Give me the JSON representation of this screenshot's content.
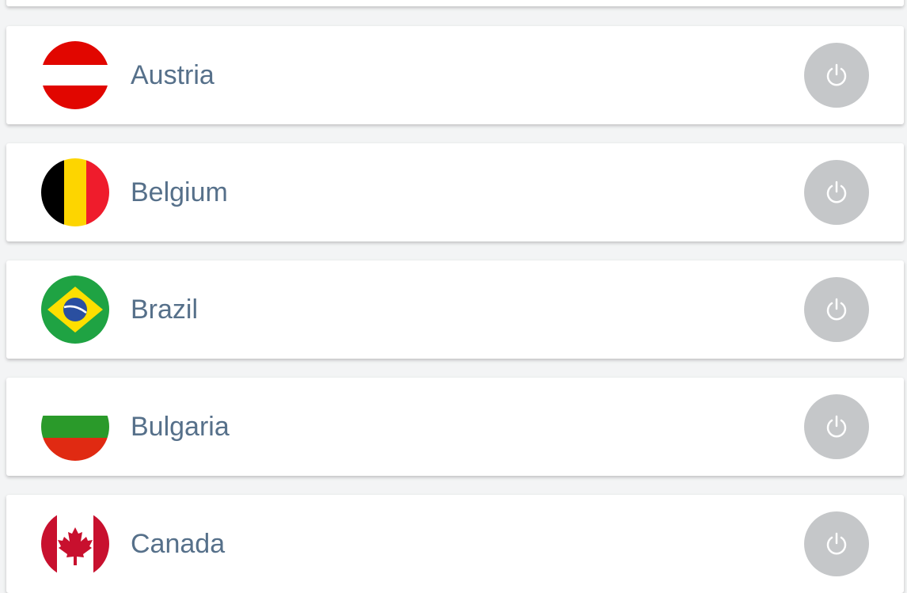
{
  "countries": [
    {
      "name": "Austria",
      "flag": "austria-flag"
    },
    {
      "name": "Belgium",
      "flag": "belgium-flag"
    },
    {
      "name": "Brazil",
      "flag": "brazil-flag"
    },
    {
      "name": "Bulgaria",
      "flag": "bulgaria-flag"
    },
    {
      "name": "Canada",
      "flag": "canada-flag"
    }
  ],
  "power_button": {
    "icon": "power-icon",
    "color": "#c5c7c9"
  }
}
